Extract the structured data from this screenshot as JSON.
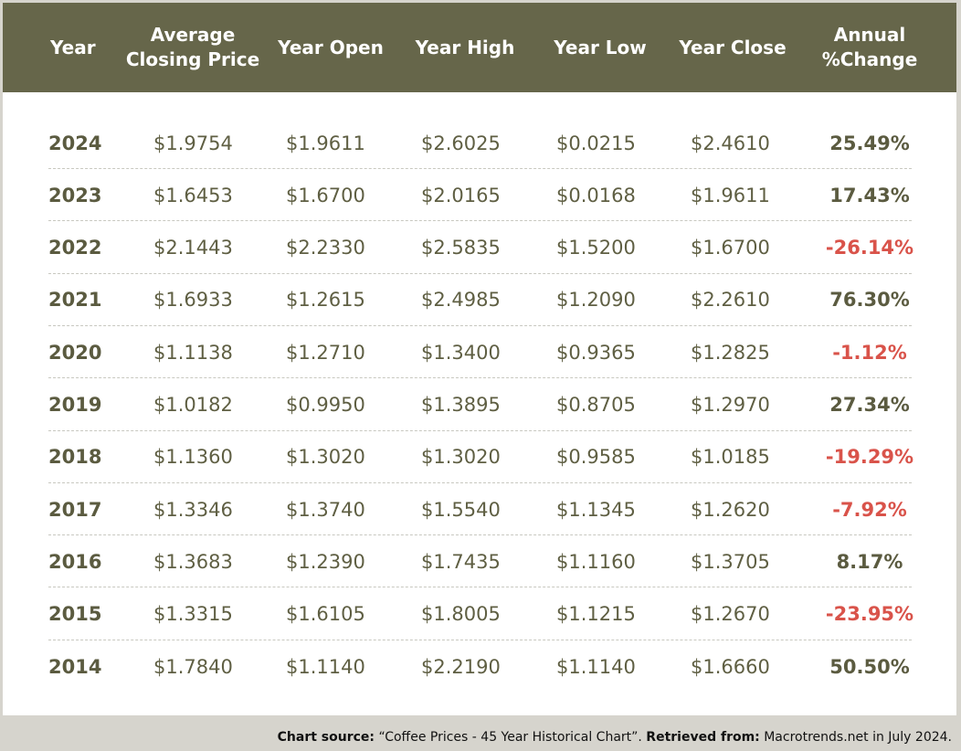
{
  "chart_data": {
    "type": "table",
    "columns": [
      "Year",
      "Average\nClosing Price",
      "Year Open",
      "Year High",
      "Year Low",
      "Year Close",
      "Annual\n%Change"
    ],
    "rows": [
      {
        "year": "2024",
        "avg_close": "$1.9754",
        "open": "$1.9611",
        "high": "$2.6025",
        "low": "$0.0215",
        "close": "$2.4610",
        "change": "25.49%"
      },
      {
        "year": "2023",
        "avg_close": "$1.6453",
        "open": "$1.6700",
        "high": "$2.0165",
        "low": "$0.0168",
        "close": "$1.9611",
        "change": "17.43%"
      },
      {
        "year": "2022",
        "avg_close": "$2.1443",
        "open": "$2.2330",
        "high": "$2.5835",
        "low": "$1.5200",
        "close": "$1.6700",
        "change": "-26.14%"
      },
      {
        "year": "2021",
        "avg_close": "$1.6933",
        "open": "$1.2615",
        "high": "$2.4985",
        "low": "$1.2090",
        "close": "$2.2610",
        "change": "76.30%"
      },
      {
        "year": "2020",
        "avg_close": "$1.1138",
        "open": "$1.2710",
        "high": "$1.3400",
        "low": "$0.9365",
        "close": "$1.2825",
        "change": "-1.12%"
      },
      {
        "year": "2019",
        "avg_close": "$1.0182",
        "open": "$0.9950",
        "high": "$1.3895",
        "low": "$0.8705",
        "close": "$1.2970",
        "change": "27.34%"
      },
      {
        "year": "2018",
        "avg_close": "$1.1360",
        "open": "$1.3020",
        "high": "$1.3020",
        "low": "$0.9585",
        "close": "$1.0185",
        "change": "-19.29%"
      },
      {
        "year": "2017",
        "avg_close": "$1.3346",
        "open": "$1.3740",
        "high": "$1.5540",
        "low": "$1.1345",
        "close": "$1.2620",
        "change": "-7.92%"
      },
      {
        "year": "2016",
        "avg_close": "$1.3683",
        "open": "$1.2390",
        "high": "$1.7435",
        "low": "$1.1160",
        "close": "$1.3705",
        "change": "8.17%"
      },
      {
        "year": "2015",
        "avg_close": "$1.3315",
        "open": "$1.6105",
        "high": "$1.8005",
        "low": "$1.1215",
        "close": "$1.2670",
        "change": "-23.95%"
      },
      {
        "year": "2014",
        "avg_close": "$1.7840",
        "open": "$1.1140",
        "high": "$2.2190",
        "low": "$1.1140",
        "close": "$1.6660",
        "change": "50.50%"
      }
    ],
    "colors": {
      "header_bg": "#66664a",
      "positive": "#5b5b40",
      "negative": "#d9534a"
    }
  },
  "footer": {
    "source_label": "Chart source:",
    "source_text": " “Coffee Prices - 45 Year Historical Chart”.",
    "retrieved_label": "Retrieved from:",
    "retrieved_text": " Macrotrends.net in July 2024."
  }
}
